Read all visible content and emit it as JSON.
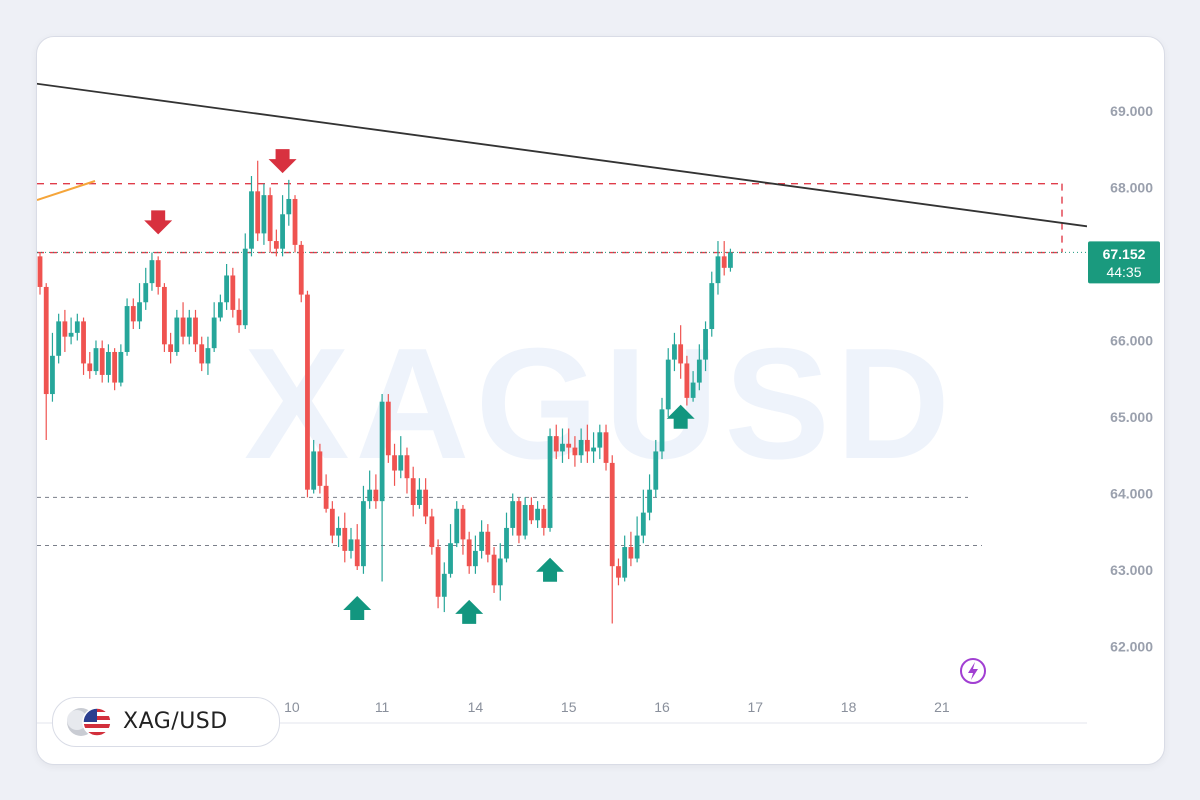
{
  "symbol": "XAG/USD",
  "watermark": "XAGUSD",
  "current_price": "67.152",
  "countdown": "44:35",
  "colors": {
    "up": "#26a69a",
    "down": "#ef5350",
    "tag": "#1a9a7e",
    "resistance": "#e03c4a",
    "support": "#0e9a83",
    "trend": "#333333"
  },
  "chart_data": {
    "type": "candlestick",
    "title": "",
    "xlabel": "",
    "ylabel": "",
    "ylim": [
      61.3,
      69.6
    ],
    "yticks": [
      "69.000",
      "68.000",
      "66.000",
      "65.000",
      "64.000",
      "63.000",
      "62.000"
    ],
    "ytick_values": [
      69,
      68,
      66,
      65,
      64,
      63,
      62
    ],
    "xticks": [
      "10",
      "11",
      "14",
      "15",
      "16",
      "17",
      "18",
      "21"
    ],
    "xtick_index": [
      40.5,
      55,
      70,
      85,
      100,
      115,
      130,
      145
    ],
    "resistance_zone": [
      67.15,
      68.05
    ],
    "support_levels": [
      63.95,
      63.32
    ],
    "trendline": {
      "start": [
        -10,
        69.05
      ],
      "end": [
        148,
        68.12
      ]
    },
    "markers_down_idx": [
      19,
      39
    ],
    "markers_up_idx": [
      51,
      69,
      82,
      103
    ],
    "candles": [
      [
        67.1,
        66.7,
        67.15,
        66.6
      ],
      [
        66.7,
        65.3,
        66.75,
        64.7
      ],
      [
        65.3,
        65.8,
        66.1,
        65.2
      ],
      [
        65.8,
        66.25,
        66.35,
        65.7
      ],
      [
        66.25,
        66.05,
        66.4,
        65.85
      ],
      [
        66.05,
        66.1,
        66.3,
        65.95
      ],
      [
        66.1,
        66.25,
        66.35,
        66.0
      ],
      [
        66.25,
        65.7,
        66.3,
        65.55
      ],
      [
        65.7,
        65.6,
        65.85,
        65.5
      ],
      [
        65.6,
        65.9,
        66.0,
        65.55
      ],
      [
        65.9,
        65.55,
        66.0,
        65.45
      ],
      [
        65.55,
        65.85,
        65.95,
        65.45
      ],
      [
        65.85,
        65.45,
        65.9,
        65.35
      ],
      [
        65.45,
        65.85,
        65.95,
        65.4
      ],
      [
        65.85,
        66.45,
        66.55,
        65.8
      ],
      [
        66.45,
        66.25,
        66.55,
        66.15
      ],
      [
        66.25,
        66.5,
        66.75,
        66.15
      ],
      [
        66.5,
        66.75,
        66.95,
        66.4
      ],
      [
        66.75,
        67.05,
        67.15,
        66.65
      ],
      [
        67.05,
        66.7,
        67.1,
        66.6
      ],
      [
        66.7,
        65.95,
        66.75,
        65.85
      ],
      [
        65.95,
        65.85,
        66.1,
        65.7
      ],
      [
        65.85,
        66.3,
        66.4,
        65.8
      ],
      [
        66.3,
        66.05,
        66.5,
        65.95
      ],
      [
        66.05,
        66.3,
        66.4,
        65.95
      ],
      [
        66.3,
        65.95,
        66.4,
        65.85
      ],
      [
        65.95,
        65.7,
        66.05,
        65.6
      ],
      [
        65.7,
        65.9,
        66.05,
        65.55
      ],
      [
        65.9,
        66.3,
        66.5,
        65.85
      ],
      [
        66.3,
        66.5,
        66.6,
        66.25
      ],
      [
        66.5,
        66.85,
        67.0,
        66.4
      ],
      [
        66.85,
        66.4,
        66.95,
        66.3
      ],
      [
        66.4,
        66.2,
        66.55,
        66.1
      ],
      [
        66.2,
        67.2,
        67.4,
        66.15
      ],
      [
        67.2,
        67.95,
        68.15,
        67.1
      ],
      [
        67.95,
        67.4,
        68.35,
        67.3
      ],
      [
        67.4,
        67.9,
        68.05,
        67.25
      ],
      [
        67.9,
        67.3,
        68.0,
        67.15
      ],
      [
        67.3,
        67.2,
        67.45,
        67.1
      ],
      [
        67.2,
        67.65,
        67.9,
        67.1
      ],
      [
        67.65,
        67.85,
        68.1,
        67.5
      ],
      [
        67.85,
        67.25,
        67.9,
        67.15
      ],
      [
        67.25,
        66.6,
        67.3,
        66.5
      ],
      [
        66.6,
        64.05,
        66.65,
        63.95
      ],
      [
        64.05,
        64.55,
        64.7,
        64.0
      ],
      [
        64.55,
        64.1,
        64.65,
        64.0
      ],
      [
        64.1,
        63.8,
        64.25,
        63.75
      ],
      [
        63.8,
        63.45,
        63.9,
        63.35
      ],
      [
        63.45,
        63.55,
        63.7,
        63.3
      ],
      [
        63.55,
        63.25,
        63.75,
        63.1
      ],
      [
        63.25,
        63.4,
        63.55,
        63.15
      ],
      [
        63.4,
        63.05,
        63.6,
        63.0
      ],
      [
        63.05,
        63.9,
        64.1,
        62.95
      ],
      [
        63.9,
        64.05,
        64.3,
        63.8
      ],
      [
        64.05,
        63.9,
        64.25,
        63.8
      ],
      [
        63.9,
        65.2,
        65.3,
        62.85
      ],
      [
        65.2,
        64.5,
        65.3,
        64.4
      ],
      [
        64.5,
        64.3,
        64.65,
        64.1
      ],
      [
        64.3,
        64.5,
        64.75,
        64.2
      ],
      [
        64.5,
        64.2,
        64.6,
        64.0
      ],
      [
        64.2,
        63.85,
        64.35,
        63.7
      ],
      [
        63.85,
        64.05,
        64.2,
        63.8
      ],
      [
        64.05,
        63.7,
        64.2,
        63.6
      ],
      [
        63.7,
        63.3,
        63.8,
        63.2
      ],
      [
        63.3,
        62.65,
        63.4,
        62.5
      ],
      [
        62.65,
        62.95,
        63.1,
        62.45
      ],
      [
        62.95,
        63.35,
        63.6,
        62.9
      ],
      [
        63.35,
        63.8,
        63.9,
        63.3
      ],
      [
        63.8,
        63.4,
        63.85,
        63.2
      ],
      [
        63.4,
        63.05,
        63.5,
        62.95
      ],
      [
        63.05,
        63.25,
        63.45,
        62.95
      ],
      [
        63.25,
        63.5,
        63.65,
        63.15
      ],
      [
        63.5,
        63.2,
        63.6,
        63.1
      ],
      [
        63.2,
        62.8,
        63.3,
        62.7
      ],
      [
        62.8,
        63.15,
        63.35,
        62.6
      ],
      [
        63.15,
        63.55,
        63.75,
        63.1
      ],
      [
        63.55,
        63.9,
        64.0,
        63.45
      ],
      [
        63.9,
        63.45,
        63.95,
        63.35
      ],
      [
        63.45,
        63.85,
        63.95,
        63.4
      ],
      [
        63.85,
        63.65,
        63.95,
        63.6
      ],
      [
        63.65,
        63.8,
        63.9,
        63.55
      ],
      [
        63.8,
        63.55,
        63.85,
        63.45
      ],
      [
        63.55,
        64.75,
        64.85,
        63.5
      ],
      [
        64.75,
        64.55,
        64.9,
        64.45
      ],
      [
        64.55,
        64.65,
        64.85,
        64.4
      ],
      [
        64.65,
        64.6,
        64.85,
        64.45
      ],
      [
        64.6,
        64.5,
        64.75,
        64.35
      ],
      [
        64.5,
        64.7,
        64.85,
        64.4
      ],
      [
        64.7,
        64.55,
        64.9,
        64.4
      ],
      [
        64.55,
        64.6,
        64.8,
        64.4
      ],
      [
        64.6,
        64.8,
        64.9,
        64.45
      ],
      [
        64.8,
        64.4,
        64.9,
        64.3
      ],
      [
        64.4,
        63.05,
        64.5,
        62.3
      ],
      [
        63.05,
        62.9,
        63.15,
        62.8
      ],
      [
        62.9,
        63.3,
        63.45,
        62.85
      ],
      [
        63.3,
        63.15,
        63.5,
        63.05
      ],
      [
        63.15,
        63.45,
        63.7,
        63.1
      ],
      [
        63.45,
        63.75,
        64.05,
        63.35
      ],
      [
        63.75,
        64.05,
        64.25,
        63.65
      ],
      [
        64.05,
        64.55,
        64.7,
        63.95
      ],
      [
        64.55,
        65.1,
        65.25,
        64.45
      ],
      [
        65.1,
        65.75,
        65.9,
        65.0
      ],
      [
        65.75,
        65.95,
        66.1,
        65.6
      ],
      [
        65.95,
        65.7,
        66.2,
        65.5
      ],
      [
        65.7,
        65.25,
        65.8,
        65.15
      ],
      [
        65.25,
        65.45,
        65.6,
        65.2
      ],
      [
        65.45,
        65.75,
        65.95,
        65.35
      ],
      [
        65.75,
        66.15,
        66.25,
        65.6
      ],
      [
        66.15,
        66.75,
        66.9,
        66.05
      ],
      [
        66.75,
        67.1,
        67.3,
        66.6
      ],
      [
        67.1,
        66.95,
        67.3,
        66.85
      ],
      [
        66.95,
        67.15,
        67.2,
        66.9
      ]
    ]
  }
}
